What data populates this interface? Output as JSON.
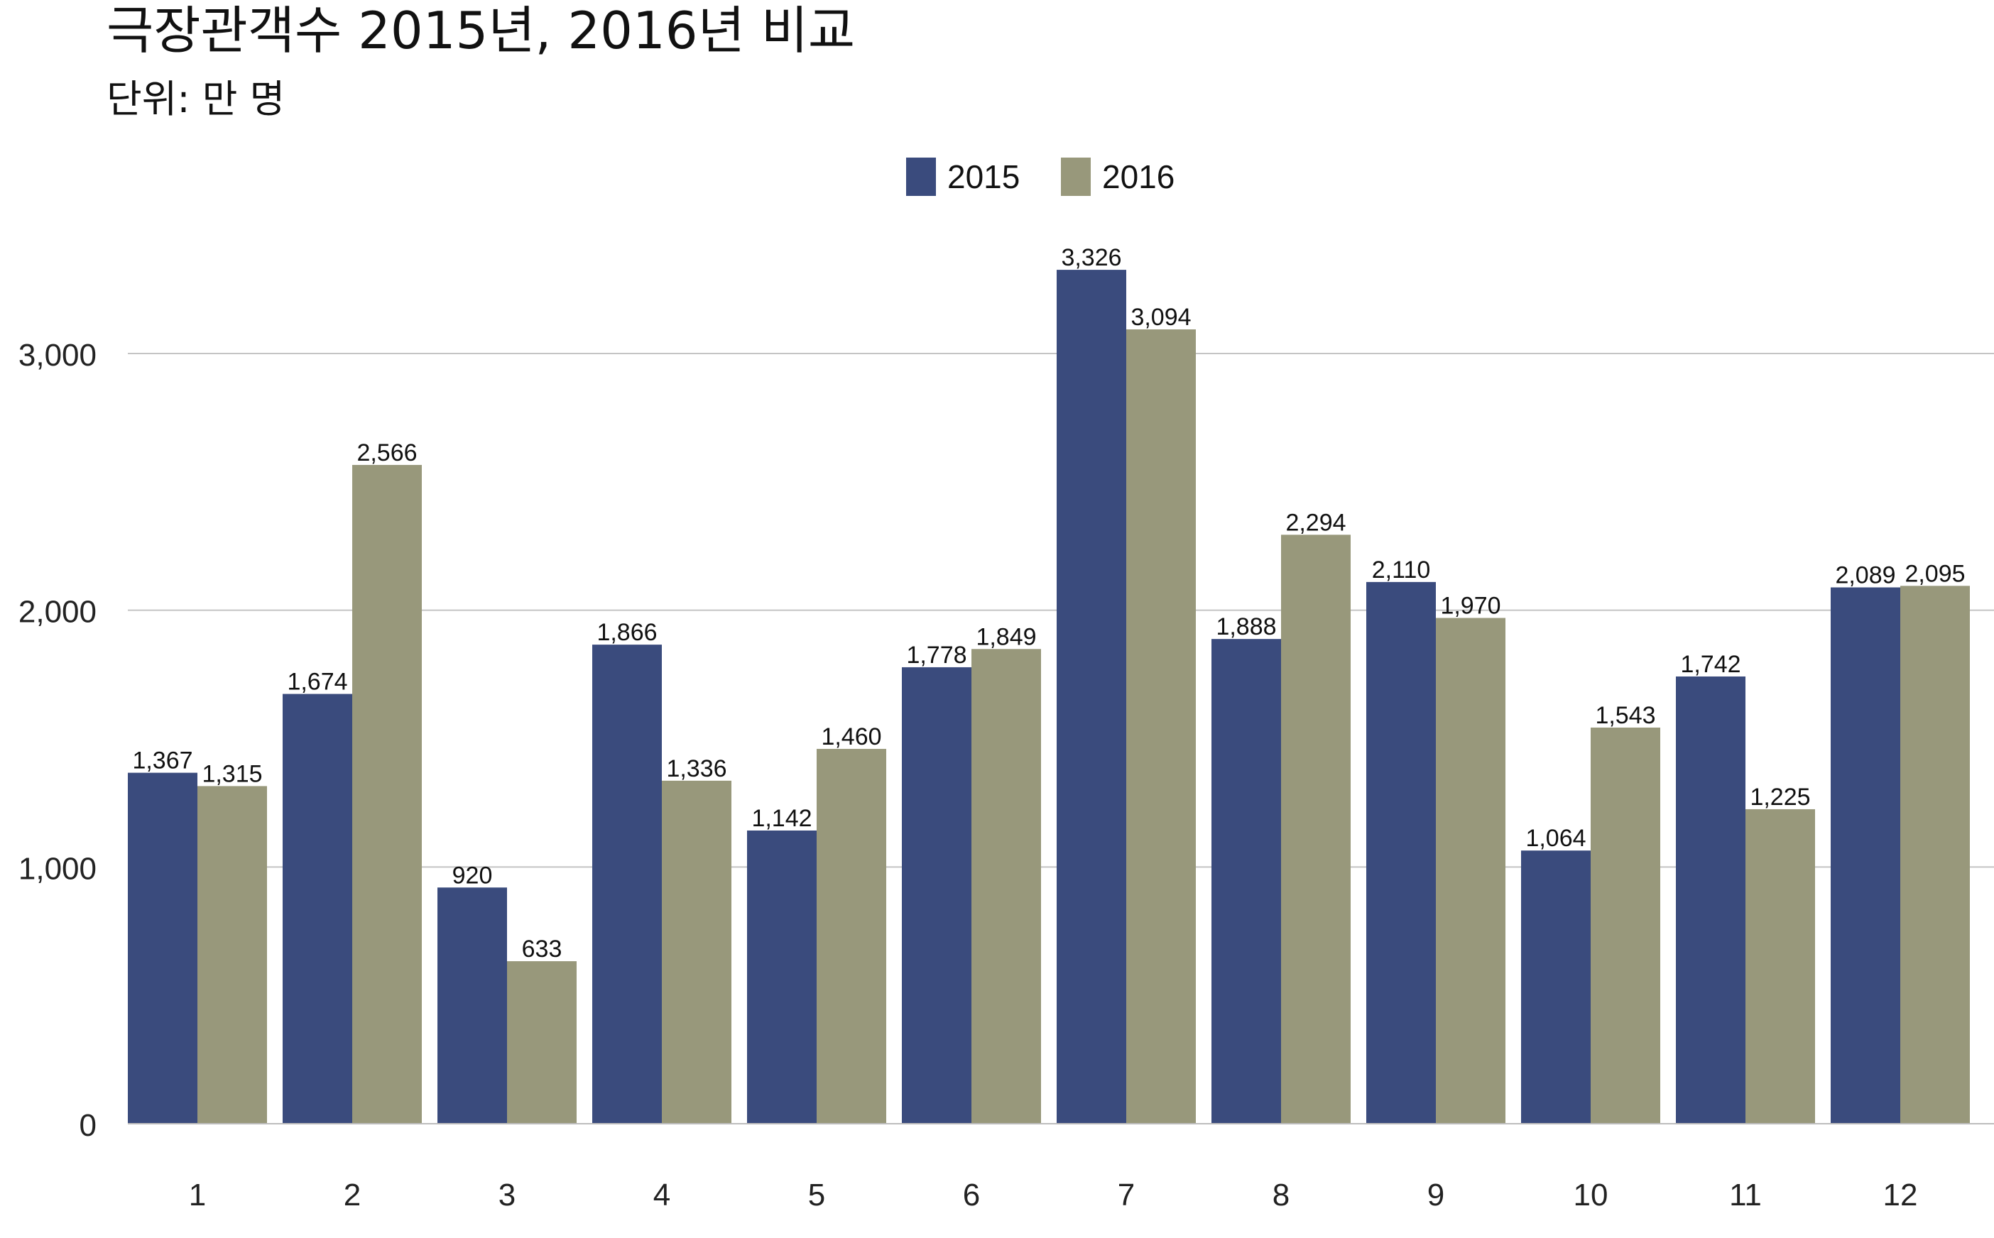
{
  "chart_data": {
    "type": "bar",
    "title": "극장관객수 2015년, 2016년 비교",
    "subtitle": "단위: 만 명",
    "xlabel": "",
    "ylabel": "",
    "categories": [
      "1",
      "2",
      "3",
      "4",
      "5",
      "6",
      "7",
      "8",
      "9",
      "10",
      "11",
      "12"
    ],
    "series": [
      {
        "name": "2015",
        "color": "#3a4b7d",
        "values": [
          1367,
          1674,
          920,
          1866,
          1142,
          1778,
          3326,
          1888,
          2110,
          1064,
          1742,
          2089
        ]
      },
      {
        "name": "2016",
        "color": "#98987b",
        "values": [
          1315,
          2566,
          633,
          1336,
          1460,
          1849,
          3094,
          2294,
          1970,
          1543,
          1225,
          2095
        ]
      }
    ],
    "ylim": [
      0,
      3750
    ],
    "yticks": [
      0,
      1000,
      2000,
      3000
    ],
    "ytick_labels": [
      "0",
      "1,000",
      "2,000",
      "3,000"
    ],
    "grid": true,
    "legend_position": "top-center",
    "data_labels": true
  }
}
